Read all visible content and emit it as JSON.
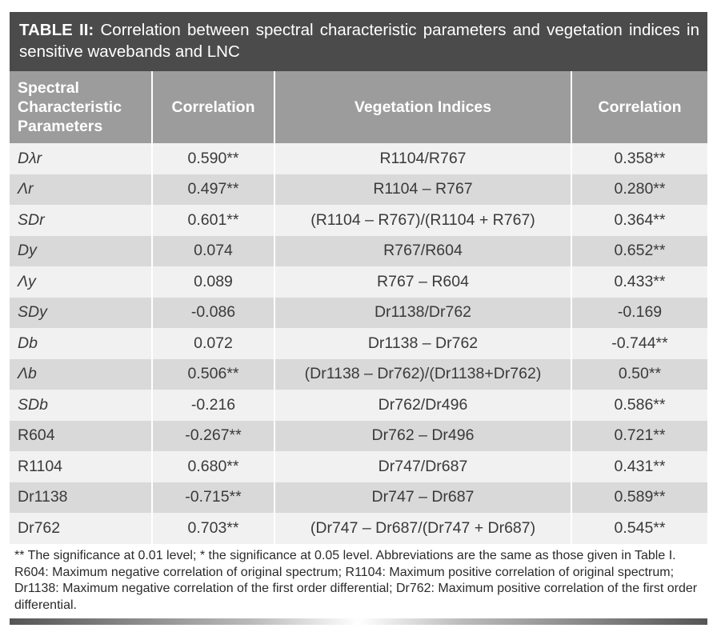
{
  "title": {
    "label": "TABLE II:",
    "text": " Correlation between spectral characteristic parameters and vegetation indices in sensitive wavebands and LNC"
  },
  "headers": [
    "Spectral Characteristic Parameters",
    "Correlation",
    "Vegetation Indices",
    "Correlation"
  ],
  "rows": [
    {
      "param": "Dλr",
      "italic": true,
      "corr1": "0.590**",
      "index": "R1104/R767",
      "corr2": "0.358**"
    },
    {
      "param": "Λr",
      "italic": true,
      "corr1": "0.497**",
      "index": "R1104 – R767",
      "corr2": "0.280**"
    },
    {
      "param": "SDr",
      "italic": true,
      "corr1": "0.601**",
      "index": "(R1104 – R767)/(R1104 + R767)",
      "corr2": "0.364**"
    },
    {
      "param": "Dy",
      "italic": true,
      "corr1": "0.074",
      "index": "R767/R604",
      "corr2": "0.652**"
    },
    {
      "param": "Λy",
      "italic": true,
      "corr1": "0.089",
      "index": "R767 – R604",
      "corr2": "0.433**"
    },
    {
      "param": "SDy",
      "italic": true,
      "corr1": "-0.086",
      "index": "Dr1138/Dr762",
      "corr2": "-0.169"
    },
    {
      "param": "Db",
      "italic": true,
      "corr1": "0.072",
      "index": "Dr1138 – Dr762",
      "corr2": "-0.744**"
    },
    {
      "param": "Λb",
      "italic": true,
      "corr1": "0.506**",
      "index": "(Dr1138 – Dr762)/(Dr1138+Dr762)",
      "corr2": "0.50**"
    },
    {
      "param": "SDb",
      "italic": true,
      "corr1": "-0.216",
      "index": "Dr762/Dr496",
      "corr2": "0.586**"
    },
    {
      "param": "R604",
      "italic": false,
      "corr1": "-0.267**",
      "index": "Dr762 – Dr496",
      "corr2": "0.721**"
    },
    {
      "param": "R1104",
      "italic": false,
      "corr1": "0.680**",
      "index": "Dr747/Dr687",
      "corr2": "0.431**"
    },
    {
      "param": "Dr1138",
      "italic": false,
      "corr1": "-0.715**",
      "index": "Dr747 – Dr687",
      "corr2": "0.589**"
    },
    {
      "param": "Dr762",
      "italic": false,
      "corr1": "0.703**",
      "index": "(Dr747 – Dr687/(Dr747 + Dr687)",
      "corr2": "0.545**"
    }
  ],
  "footnote": "** The significance at 0.01 level; * the significance at 0.05 level. Abbreviations are the same as those given in Table I. R604: Maximum negative correlation of original spectrum; R1104: Maximum positive correlation of original spectrum; Dr1138: Maximum negative correlation of the first order differential; Dr762: Maximum positive correlation of the first order differential.",
  "colors": {
    "title_bg": "#4b4b4b",
    "header_bg": "#9c9c9c",
    "row_light": "#f1f1f1",
    "row_dark": "#d9d9d9"
  }
}
